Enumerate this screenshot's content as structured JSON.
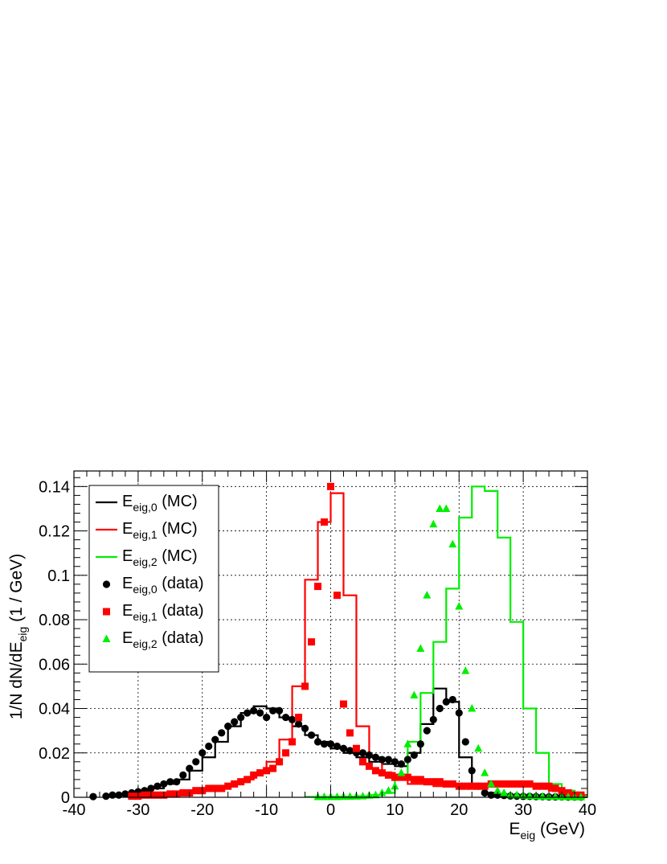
{
  "chart_data": {
    "type": "line",
    "xlabel": {
      "main": "E",
      "sub": "eig",
      "unit": " (GeV)"
    },
    "ylabel": {
      "prefix": "1/N dN/dE",
      "sub": "eig",
      "unit": " (1 / GeV)"
    },
    "xlim": [
      -40,
      40
    ],
    "ylim": [
      0,
      0.147
    ],
    "xticks": [
      -40,
      -30,
      -20,
      -10,
      0,
      10,
      20,
      30,
      40
    ],
    "xtick_labels": [
      "-40",
      "-30",
      "-20",
      "-10",
      "0",
      "10",
      "20",
      "30",
      "40"
    ],
    "yticks": [
      0,
      0.02,
      0.04,
      0.06,
      0.08,
      0.1,
      0.12,
      0.14
    ],
    "ytick_labels": [
      "0",
      "0.02",
      "0.04",
      "0.06",
      "0.08",
      "0.1",
      "0.12",
      "0.14"
    ],
    "grid": true,
    "legend_position": "top-left",
    "series": [
      {
        "name": "E_eig,0 (MC)",
        "label": {
          "main": "E",
          "sub": "eig,0",
          "suffix": " (MC)"
        },
        "style": "histogram",
        "color": "#000000",
        "x": [
          -31,
          -29,
          -27,
          -25,
          -23,
          -21,
          -19,
          -17,
          -15,
          -13,
          -11,
          -9,
          -7,
          -5,
          -3,
          -1,
          1,
          3,
          5,
          7,
          9,
          11,
          13,
          15,
          17,
          19,
          21,
          23,
          25,
          27,
          29,
          31,
          33,
          35,
          37,
          39
        ],
        "values": [
          0.001,
          0.003,
          0.004,
          0.006,
          0.008,
          0.012,
          0.018,
          0.025,
          0.032,
          0.038,
          0.041,
          0.04,
          0.036,
          0.032,
          0.028,
          0.025,
          0.022,
          0.02,
          0.018,
          0.016,
          0.015,
          0.014,
          0.02,
          0.033,
          0.049,
          0.043,
          0.018,
          0.006,
          0.002,
          0.001,
          0.0005,
          0.0004,
          0.0003,
          0.0002,
          0.0001,
          0.0001
        ]
      },
      {
        "name": "E_eig,1 (MC)",
        "label": {
          "main": "E",
          "sub": "eig,1",
          "suffix": " (MC)"
        },
        "style": "histogram",
        "color": "#ff0000",
        "x": [
          -31,
          -29,
          -27,
          -25,
          -23,
          -21,
          -19,
          -17,
          -15,
          -13,
          -11,
          -9,
          -7,
          -5,
          -3,
          -1,
          1,
          3,
          5,
          7,
          9,
          11,
          13,
          15,
          17,
          19,
          21,
          23,
          25,
          27,
          29,
          31,
          33,
          35,
          37,
          39
        ],
        "values": [
          0.001,
          0.001,
          0.001,
          0.002,
          0.002,
          0.003,
          0.004,
          0.005,
          0.006,
          0.008,
          0.011,
          0.016,
          0.026,
          0.05,
          0.098,
          0.124,
          0.137,
          0.091,
          0.032,
          0.018,
          0.011,
          0.008,
          0.006,
          0.006,
          0.005,
          0.005,
          0.005,
          0.006,
          0.006,
          0.006,
          0.006,
          0.005,
          0.004,
          0.003,
          0.002,
          0.001
        ]
      },
      {
        "name": "E_eig,2 (MC)",
        "label": {
          "main": "E",
          "sub": "eig,2",
          "suffix": " (MC)"
        },
        "style": "histogram",
        "color": "#00ee00",
        "x": [
          -3,
          -1,
          1,
          3,
          5,
          7,
          9,
          11,
          13,
          15,
          17,
          19,
          21,
          23,
          25,
          27,
          29,
          31,
          33,
          35,
          37,
          39
        ],
        "values": [
          0.0002,
          0.0002,
          0.0003,
          0.0003,
          0.0005,
          0.001,
          0.002,
          0.01,
          0.025,
          0.047,
          0.07,
          0.094,
          0.126,
          0.14,
          0.138,
          0.117,
          0.079,
          0.04,
          0.02,
          0.006,
          0.003,
          0.0005
        ]
      },
      {
        "name": "E_eig,0 (data)",
        "label": {
          "main": "E",
          "sub": "eig,0",
          "suffix": " (data)"
        },
        "style": "markers",
        "marker": "circle",
        "color": "#000000",
        "x": [
          -37,
          -35,
          -34,
          -33,
          -32,
          -31,
          -30,
          -29,
          -28,
          -27,
          -26,
          -25,
          -24,
          -23,
          -22,
          -21,
          -20,
          -19,
          -18,
          -17,
          -16,
          -15,
          -14,
          -13,
          -12,
          -11,
          -10,
          -9,
          -8,
          -7,
          -6,
          -5,
          -4,
          -3,
          -2,
          -1,
          0,
          1,
          2,
          3,
          4,
          5,
          6,
          7,
          8,
          9,
          10,
          11,
          12,
          13,
          14,
          15,
          16,
          17,
          18,
          19,
          20,
          21,
          22,
          23,
          24,
          25,
          26,
          27,
          28,
          29,
          30,
          31,
          32,
          33,
          34,
          35,
          36,
          37,
          38,
          39
        ],
        "values": [
          0.0003,
          0.0005,
          0.001,
          0.001,
          0.0015,
          0.002,
          0.0025,
          0.003,
          0.004,
          0.005,
          0.006,
          0.007,
          0.007,
          0.01,
          0.013,
          0.016,
          0.02,
          0.023,
          0.026,
          0.029,
          0.032,
          0.034,
          0.036,
          0.038,
          0.039,
          0.038,
          0.036,
          0.039,
          0.039,
          0.036,
          0.035,
          0.033,
          0.031,
          0.028,
          0.025,
          0.024,
          0.024,
          0.023,
          0.022,
          0.021,
          0.02,
          0.02,
          0.019,
          0.018,
          0.017,
          0.017,
          0.016,
          0.015,
          0.017,
          0.019,
          0.024,
          0.03,
          0.035,
          0.04,
          0.043,
          0.044,
          0.038,
          0.025,
          0.012,
          0.005,
          0.002,
          0.001,
          0.001,
          0.0008,
          0.0006,
          0.0005,
          0.0004,
          0.0004,
          0.0003,
          0.0003,
          0.0002,
          0.0002,
          0.0002,
          0.0001,
          0.0001,
          0.0001
        ]
      },
      {
        "name": "E_eig,1 (data)",
        "label": {
          "main": "E",
          "sub": "eig,1",
          "suffix": " (data)"
        },
        "style": "markers",
        "marker": "square",
        "color": "#ff0000",
        "x": [
          -31,
          -30,
          -29,
          -28,
          -27,
          -26,
          -25,
          -24,
          -23,
          -22,
          -21,
          -20,
          -19,
          -18,
          -17,
          -16,
          -15,
          -14,
          -13,
          -12,
          -11,
          -10,
          -9,
          -8,
          -7,
          -6,
          -5,
          -4,
          -3,
          -2,
          -1,
          0,
          1,
          2,
          3,
          4,
          5,
          6,
          7,
          8,
          9,
          10,
          11,
          12,
          13,
          14,
          15,
          16,
          17,
          18,
          19,
          20,
          21,
          22,
          23,
          24,
          25,
          26,
          27,
          28,
          29,
          30,
          31,
          32,
          33,
          34,
          35,
          36,
          37,
          38,
          39
        ],
        "values": [
          0.0005,
          0.0005,
          0.001,
          0.001,
          0.001,
          0.001,
          0.0015,
          0.0015,
          0.002,
          0.002,
          0.003,
          0.003,
          0.004,
          0.004,
          0.004,
          0.005,
          0.006,
          0.007,
          0.008,
          0.01,
          0.011,
          0.012,
          0.013,
          0.016,
          0.02,
          0.025,
          0.036,
          0.05,
          0.07,
          0.095,
          0.124,
          0.14,
          0.091,
          0.042,
          0.029,
          0.022,
          0.016,
          0.014,
          0.012,
          0.011,
          0.01,
          0.009,
          0.009,
          0.009,
          0.008,
          0.008,
          0.007,
          0.007,
          0.007,
          0.006,
          0.006,
          0.005,
          0.005,
          0.005,
          0.005,
          0.005,
          0.006,
          0.006,
          0.006,
          0.006,
          0.006,
          0.006,
          0.006,
          0.005,
          0.005,
          0.005,
          0.004,
          0.003,
          0.002,
          0.001,
          0.001
        ]
      },
      {
        "name": "E_eig,2 (data)",
        "label": {
          "main": "E",
          "sub": "eig,2",
          "suffix": " (data)"
        },
        "style": "markers",
        "marker": "triangle",
        "color": "#00ee00",
        "x": [
          -2,
          -1,
          0,
          1,
          2,
          3,
          4,
          5,
          6,
          7,
          8,
          9,
          10,
          11,
          12,
          13,
          14,
          15,
          16,
          17,
          18,
          19,
          20,
          21,
          22,
          23,
          24,
          25,
          26,
          27,
          28,
          29,
          30,
          31,
          32,
          33,
          34,
          35,
          36,
          37,
          38,
          39
        ],
        "values": [
          0.0002,
          0.0002,
          0.0002,
          0.0002,
          0.0003,
          0.0003,
          0.0004,
          0.0005,
          0.0008,
          0.001,
          0.002,
          0.003,
          0.005,
          0.011,
          0.024,
          0.046,
          0.067,
          0.091,
          0.123,
          0.13,
          0.13,
          0.114,
          0.086,
          0.057,
          0.04,
          0.022,
          0.011,
          0.006,
          0.003,
          0.002,
          0.001,
          0.001,
          0.0008,
          0.0006,
          0.0005,
          0.0004,
          0.0003,
          0.0003,
          0.0002,
          0.0002,
          0.0001,
          0.0001
        ]
      }
    ]
  }
}
